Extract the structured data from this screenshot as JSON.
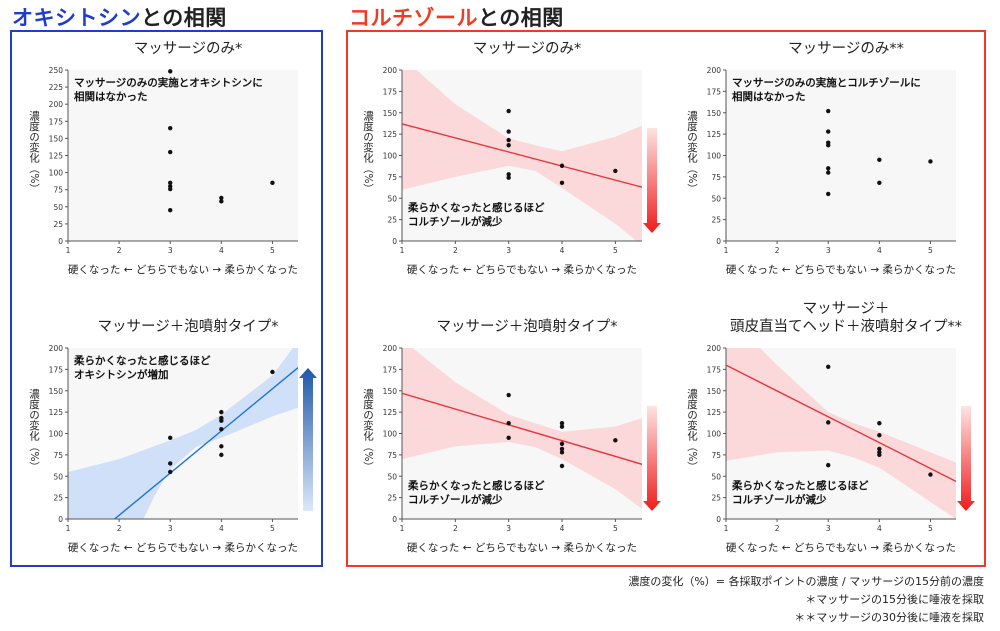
{
  "header": {
    "left_title_highlight": "オキシトシン",
    "left_title_rest": "との相関",
    "right_title_highlight": "コルチゾール",
    "right_title_rest": "との相関"
  },
  "colors": {
    "left_accent": "#1e3dcc",
    "right_accent": "#ee3b24",
    "blue_line": "#1a73d9",
    "blue_band": "#c9dcf8",
    "red_line": "#e8333b",
    "red_band": "#fbd3d6"
  },
  "axis_common": {
    "ylabel": "濃度の変化（%）",
    "xlabel": "硬くなった ← どちらでもない → 柔らかくなった"
  },
  "footnotes": [
    "濃度の変化（%）= 各採取ポイントの濃度 / マッサージの15分前の濃度",
    "＊マッサージの15分後に唾液を採取",
    "＊＊マッサージの30分後に唾液を採取"
  ],
  "chart_data": [
    {
      "id": "oxy-massage",
      "type": "scatter",
      "title": "マッサージのみ*",
      "xlim": [
        1,
        5.5
      ],
      "ylim": [
        0,
        250
      ],
      "yticks": [
        0,
        25,
        50,
        75,
        100,
        125,
        150,
        175,
        200,
        225,
        250
      ],
      "xticks": [
        1,
        2,
        3,
        4,
        5
      ],
      "points": [
        [
          3,
          248
        ],
        [
          3,
          165
        ],
        [
          3,
          130
        ],
        [
          3,
          85
        ],
        [
          3,
          80
        ],
        [
          3,
          76
        ],
        [
          3,
          45
        ],
        [
          4,
          63
        ],
        [
          4,
          58
        ],
        [
          5,
          85
        ]
      ],
      "annotation": [
        "マッサージのみの実施とオキシトシンに",
        "相関はなかった"
      ],
      "fit": null
    },
    {
      "id": "oxy-foam",
      "type": "scatter",
      "title": "マッサージ＋泡噴射タイプ*",
      "xlim": [
        1,
        5.5
      ],
      "ylim": [
        0,
        200
      ],
      "yticks": [
        0,
        25,
        50,
        75,
        100,
        125,
        150,
        175,
        200
      ],
      "xticks": [
        1,
        2,
        3,
        4,
        5
      ],
      "points": [
        [
          3,
          95
        ],
        [
          3,
          65
        ],
        [
          3,
          55
        ],
        [
          4,
          125
        ],
        [
          4,
          118
        ],
        [
          4,
          115
        ],
        [
          4,
          105
        ],
        [
          4,
          85
        ],
        [
          4,
          75
        ],
        [
          5,
          172
        ]
      ],
      "annotation": [
        "柔らかくなったと感じるほど",
        "オキシトシンが増加"
      ],
      "fit": {
        "x0": 1,
        "y0": -45,
        "x1": 5.5,
        "y1": 177
      },
      "band": {
        "upper": [
          [
            1,
            55
          ],
          [
            2,
            70
          ],
          [
            3,
            92
          ],
          [
            3.5,
            104
          ],
          [
            4,
            122
          ],
          [
            5,
            168
          ],
          [
            5.5,
            208
          ]
        ],
        "lower": [
          [
            1,
            -140
          ],
          [
            2,
            -60
          ],
          [
            2.7,
            28
          ],
          [
            3,
            58
          ],
          [
            3.5,
            84
          ],
          [
            4,
            95
          ],
          [
            5,
            120
          ],
          [
            5.5,
            130
          ]
        ]
      },
      "arrow": "up"
    },
    {
      "id": "cort-massage",
      "type": "scatter",
      "title": "マッサージのみ*",
      "xlim": [
        1,
        5.5
      ],
      "ylim": [
        0,
        200
      ],
      "yticks": [
        0,
        25,
        50,
        75,
        100,
        125,
        150,
        175,
        200
      ],
      "xticks": [
        1,
        2,
        3,
        4,
        5
      ],
      "points": [
        [
          3,
          152
        ],
        [
          3,
          128
        ],
        [
          3,
          118
        ],
        [
          3,
          112
        ],
        [
          3,
          78
        ],
        [
          3,
          74
        ],
        [
          4,
          88
        ],
        [
          4,
          68
        ],
        [
          5,
          82
        ]
      ],
      "annotation": [
        "柔らかくなったと感じるほど",
        "コルチゾールが減少"
      ],
      "fit": {
        "x0": 1,
        "y0": 137,
        "x1": 5.5,
        "y1": 63
      },
      "band": {
        "upper": [
          [
            1,
            215
          ],
          [
            2,
            160
          ],
          [
            3,
            120
          ],
          [
            3.5,
            112
          ],
          [
            4,
            105
          ],
          [
            5,
            122
          ],
          [
            5.5,
            135
          ]
        ],
        "lower": [
          [
            1,
            60
          ],
          [
            2,
            75
          ],
          [
            3,
            88
          ],
          [
            3.5,
            82
          ],
          [
            4,
            62
          ],
          [
            5,
            20
          ],
          [
            5.5,
            -5
          ]
        ]
      },
      "arrow": "down"
    },
    {
      "id": "cort-massage-30",
      "type": "scatter",
      "title": "マッサージのみ**",
      "xlim": [
        1,
        5.5
      ],
      "ylim": [
        0,
        200
      ],
      "yticks": [
        0,
        25,
        50,
        75,
        100,
        125,
        150,
        175,
        200
      ],
      "xticks": [
        1,
        2,
        3,
        4,
        5
      ],
      "points": [
        [
          3,
          152
        ],
        [
          3,
          128
        ],
        [
          3,
          115
        ],
        [
          3,
          112
        ],
        [
          3,
          85
        ],
        [
          3,
          80
        ],
        [
          3,
          55
        ],
        [
          4,
          95
        ],
        [
          4,
          68
        ],
        [
          5,
          93
        ]
      ],
      "annotation": [
        "マッサージのみの実施とコルチゾールに",
        "相関はなかった"
      ],
      "fit": null
    },
    {
      "id": "cort-foam",
      "type": "scatter",
      "title": "マッサージ＋泡噴射タイプ*",
      "xlim": [
        1,
        5.5
      ],
      "ylim": [
        0,
        200
      ],
      "yticks": [
        0,
        25,
        50,
        75,
        100,
        125,
        150,
        175,
        200
      ],
      "xticks": [
        1,
        2,
        3,
        4,
        5
      ],
      "points": [
        [
          3,
          145
        ],
        [
          3,
          112
        ],
        [
          3,
          95
        ],
        [
          4,
          112
        ],
        [
          4,
          108
        ],
        [
          4,
          88
        ],
        [
          4,
          82
        ],
        [
          4,
          78
        ],
        [
          4,
          62
        ],
        [
          5,
          92
        ]
      ],
      "annotation": [
        "柔らかくなったと感じるほど",
        "コルチゾールが減少"
      ],
      "fit": {
        "x0": 1,
        "y0": 147,
        "x1": 5.5,
        "y1": 64
      },
      "band": {
        "upper": [
          [
            1,
            210
          ],
          [
            2,
            160
          ],
          [
            3,
            122
          ],
          [
            3.5,
            112
          ],
          [
            4,
            102
          ],
          [
            5,
            108
          ],
          [
            5.5,
            118
          ]
        ],
        "lower": [
          [
            1,
            70
          ],
          [
            2,
            85
          ],
          [
            3,
            90
          ],
          [
            3.5,
            84
          ],
          [
            4,
            70
          ],
          [
            5,
            35
          ],
          [
            5.5,
            12
          ]
        ]
      },
      "arrow": "down"
    },
    {
      "id": "cort-head-liquid",
      "type": "scatter",
      "title": "マッサージ＋\n頭皮直当てヘッド＋液噴射タイプ**",
      "xlim": [
        1,
        5.5
      ],
      "ylim": [
        0,
        200
      ],
      "yticks": [
        0,
        25,
        50,
        75,
        100,
        125,
        150,
        175,
        200
      ],
      "xticks": [
        1,
        2,
        3,
        4,
        5
      ],
      "points": [
        [
          3,
          178
        ],
        [
          3,
          113
        ],
        [
          3,
          63
        ],
        [
          4,
          112
        ],
        [
          4,
          98
        ],
        [
          4,
          82
        ],
        [
          4,
          78
        ],
        [
          4,
          75
        ],
        [
          5,
          52
        ]
      ],
      "annotation": [
        "柔らかくなったと感じるほど",
        "コルチゾールが減少"
      ],
      "fit": {
        "x0": 1,
        "y0": 180,
        "x1": 5.5,
        "y1": 44
      },
      "band": {
        "upper": [
          [
            1,
            240
          ],
          [
            2,
            180
          ],
          [
            3,
            125
          ],
          [
            3.5,
            112
          ],
          [
            4,
            102
          ],
          [
            5,
            78
          ],
          [
            5.5,
            66
          ]
        ],
        "lower": [
          [
            1,
            68
          ],
          [
            2,
            78
          ],
          [
            3,
            80
          ],
          [
            3.5,
            72
          ],
          [
            4,
            60
          ],
          [
            5,
            20
          ],
          [
            5.5,
            0
          ]
        ]
      },
      "arrow": "down"
    }
  ]
}
